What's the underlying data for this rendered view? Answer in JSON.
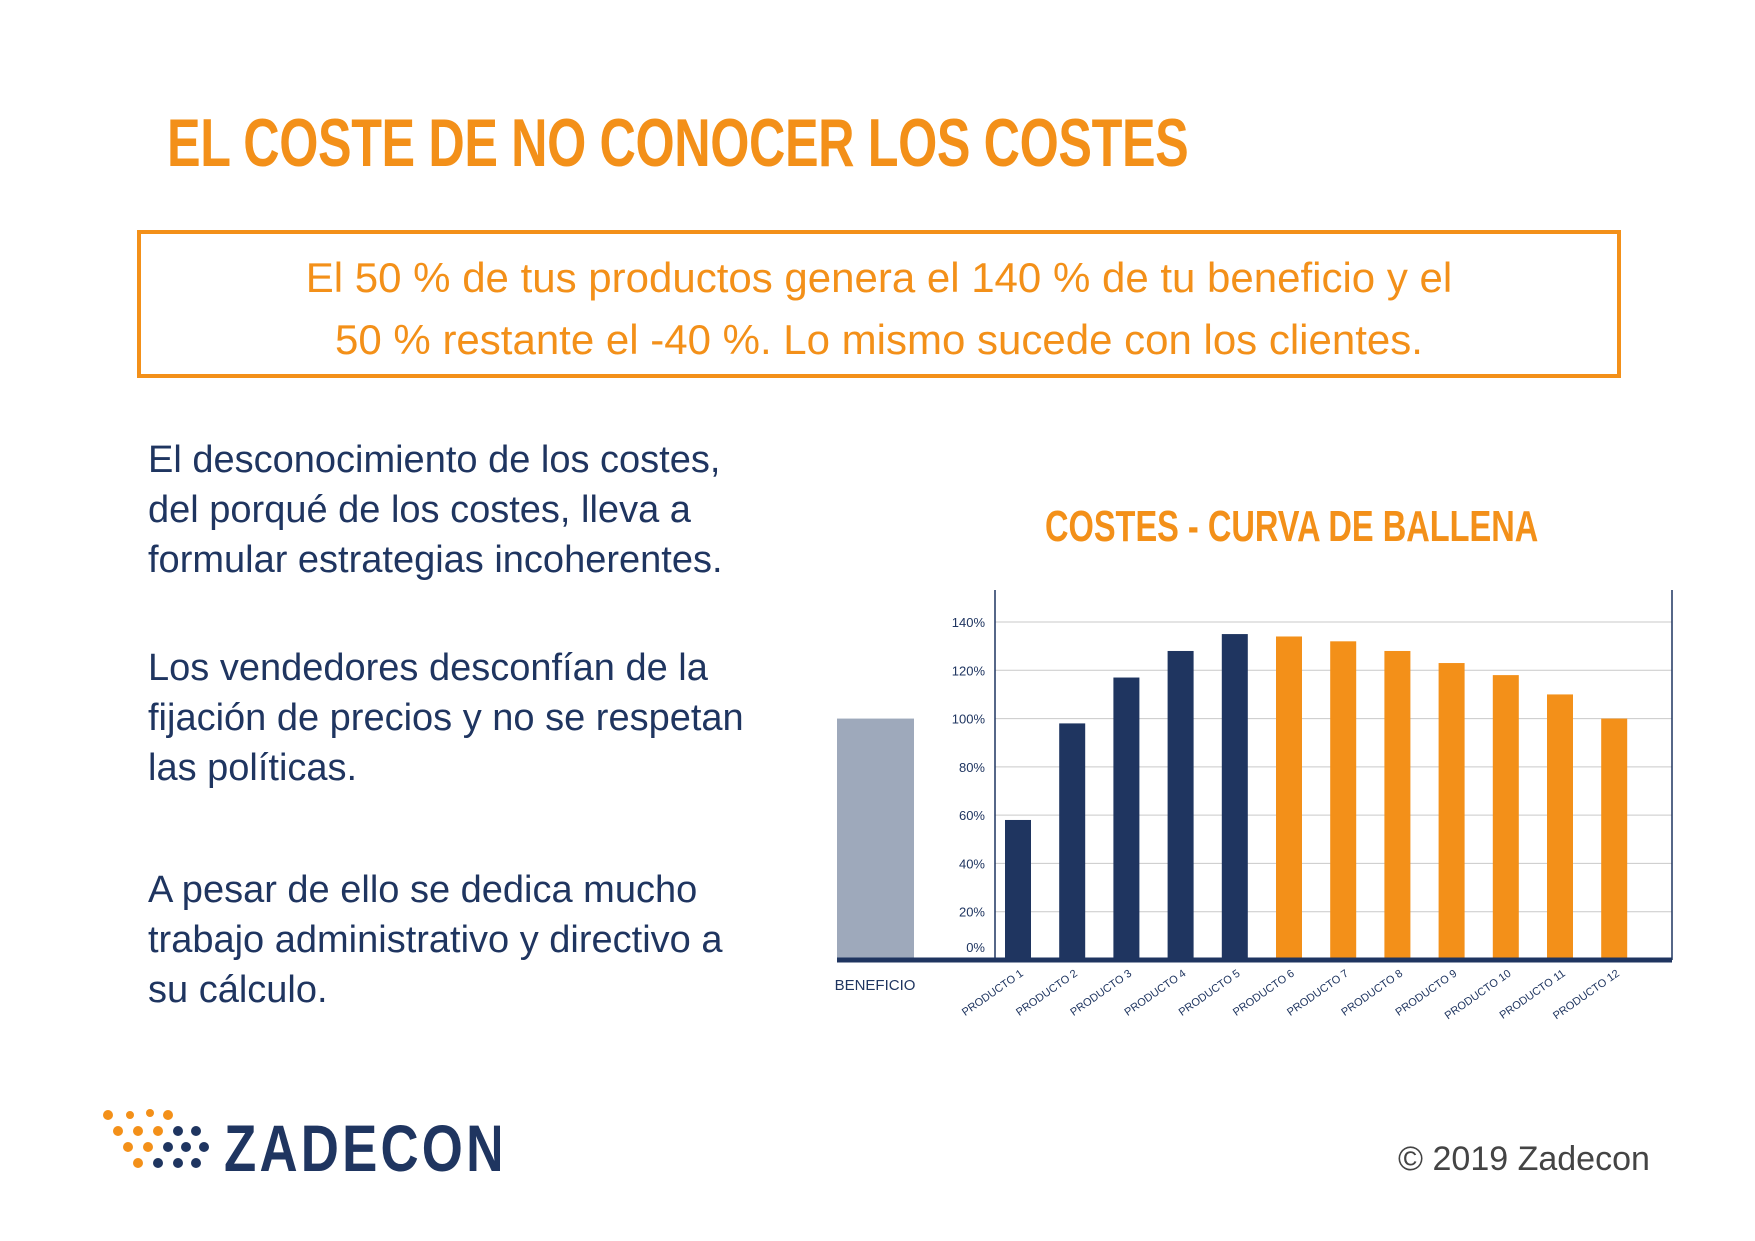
{
  "title": "EL COSTE DE NO CONOCER LOS COSTES",
  "highlight": {
    "line1": "El 50 % de tus productos genera el 140 % de tu beneficio y el",
    "line2": "50 % restante el -40 %. Lo mismo sucede con los clientes."
  },
  "paragraphs": [
    [
      "El desconocimiento de los costes,",
      "del porqué de los costes, lleva a",
      "formular estrategias incoherentes."
    ],
    [
      "Los vendedores desconfían de la",
      "fijación de precios y no se respetan",
      "las políticas."
    ],
    [
      "A pesar de ello se dedica mucho",
      "trabajo administrativo y directivo a",
      "su cálculo."
    ]
  ],
  "chart_data": {
    "type": "bar",
    "title": "COSTES - CURVA DE BALLENA",
    "benefit": {
      "label": "BENEFICIO",
      "value": 100,
      "color": "#9ea9bb"
    },
    "categories": [
      "PRODUCTO 1",
      "PRODUCTO 2",
      "PRODUCTO 3",
      "PRODUCTO 4",
      "PRODUCTO 5",
      "PRODUCTO 6",
      "PRODUCTO 7",
      "PRODUCTO 8",
      "PRODUCTO 9",
      "PRODUCTO 10",
      "PRODUCTO 11",
      "PRODUCTO 12"
    ],
    "values": [
      58,
      98,
      117,
      128,
      135,
      134,
      132,
      128,
      123,
      118,
      110,
      100
    ],
    "colors": [
      "#1f3560",
      "#1f3560",
      "#1f3560",
      "#1f3560",
      "#1f3560",
      "#f39019",
      "#f39019",
      "#f39019",
      "#f39019",
      "#f39019",
      "#f39019",
      "#f39019"
    ],
    "ylim": [
      0,
      140
    ],
    "yticks": [
      "0%",
      "20%",
      "40%",
      "60%",
      "80%",
      "100%",
      "120%",
      "140%"
    ],
    "ytick_values": [
      0,
      20,
      40,
      60,
      80,
      100,
      120,
      140
    ],
    "grid": true
  },
  "logo": {
    "text": "ZADECON",
    "orange": "#f39019",
    "navy": "#1f3560"
  },
  "copyright": "© 2019 Zadecon"
}
